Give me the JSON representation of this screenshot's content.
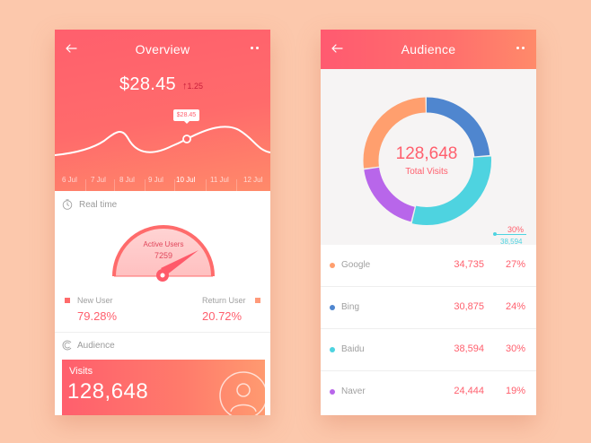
{
  "overview": {
    "title": "Overview",
    "amount": "$28.45",
    "delta": "1.25",
    "tooltip": "$28.45",
    "dates": [
      "6 Jul",
      "7 Jul",
      "8 Jul",
      "9 Jul",
      "10 Jul",
      "11 Jul",
      "12 Jul"
    ],
    "active_date_index": 4,
    "realtime_label": "Real time",
    "gauge_label": "Active Users",
    "gauge_value": "7259",
    "new_user_label": "New User",
    "new_user_value": "79.28%",
    "return_user_label": "Return User",
    "return_user_value": "20.72%",
    "audience_label": "Audience",
    "visits_label": "Visits",
    "visits_value": "128,648"
  },
  "audience": {
    "title": "Audience",
    "total_value": "128,648",
    "total_label": "Total Visits",
    "callout_pct": "30%",
    "callout_num": "38,594",
    "rows": [
      {
        "name": "Google",
        "value": "34,735",
        "pct": "27%",
        "color": "#ff9f6e"
      },
      {
        "name": "Bing",
        "value": "30,875",
        "pct": "24%",
        "color": "#4f86cf"
      },
      {
        "name": "Baidu",
        "value": "38,594",
        "pct": "30%",
        "color": "#4ed3e0"
      },
      {
        "name": "Naver",
        "value": "24,444",
        "pct": "19%",
        "color": "#b866ea"
      }
    ]
  },
  "colors": {
    "accent": "#ff5f6d",
    "new_user": "#ff6b6b",
    "return_user": "#ff9a7a"
  },
  "icons": [
    "back-arrow-icon",
    "more-dots-icon",
    "clock-icon",
    "audience-icon",
    "user-icon"
  ]
}
